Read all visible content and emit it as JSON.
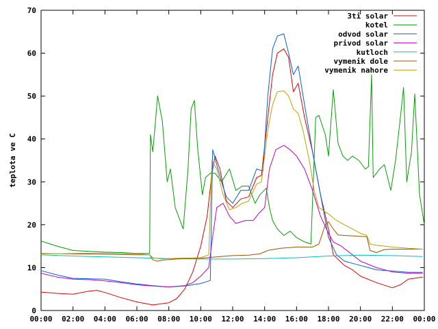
{
  "chart_data": {
    "type": "line",
    "title": "",
    "xlabel": "",
    "ylabel": "teplota ve C",
    "xlim": [
      0,
      24
    ],
    "ylim": [
      0,
      70
    ],
    "x_ticks": [
      0,
      2,
      4,
      6,
      8,
      10,
      12,
      14,
      16,
      18,
      20,
      22,
      24
    ],
    "x_tick_labels": [
      "00:00",
      "02:00",
      "04:00",
      "06:00",
      "08:00",
      "10:00",
      "12:00",
      "14:00",
      "16:00",
      "18:00",
      "20:00",
      "22:00",
      "00:00"
    ],
    "y_ticks": [
      0,
      10,
      20,
      30,
      40,
      50,
      60,
      70
    ],
    "y_tick_labels": [
      "0",
      "10",
      "20",
      "30",
      "40",
      "50",
      "60",
      "70"
    ],
    "grid": false,
    "legend_position": "top-right",
    "series": [
      {
        "name": "3ti solar",
        "color": "#e00000",
        "points": [
          [
            0,
            4.3
          ],
          [
            1,
            4
          ],
          [
            2,
            3.8
          ],
          [
            3,
            4.5
          ],
          [
            3.5,
            4.7
          ],
          [
            4,
            4.2
          ],
          [
            5,
            3
          ],
          [
            6,
            2
          ],
          [
            7,
            1.3
          ],
          [
            8,
            1.8
          ],
          [
            8.5,
            2.8
          ],
          [
            9,
            5
          ],
          [
            9.5,
            9
          ],
          [
            10,
            15
          ],
          [
            10.4,
            22
          ],
          [
            10.7,
            32
          ],
          [
            10.9,
            36
          ],
          [
            11.2,
            33
          ],
          [
            11.6,
            25.5
          ],
          [
            12,
            24
          ],
          [
            12.5,
            26
          ],
          [
            13,
            26.5
          ],
          [
            13.5,
            31
          ],
          [
            13.8,
            31.5
          ],
          [
            14.2,
            45
          ],
          [
            14.5,
            55
          ],
          [
            14.8,
            60
          ],
          [
            15.2,
            61
          ],
          [
            15.5,
            59
          ],
          [
            15.8,
            51
          ],
          [
            16.1,
            53
          ],
          [
            16.5,
            45
          ],
          [
            17,
            37
          ],
          [
            17.5,
            27
          ],
          [
            18,
            19
          ],
          [
            18.3,
            13
          ],
          [
            19,
            10.5
          ],
          [
            19.5,
            9.5
          ],
          [
            20,
            8
          ],
          [
            21,
            6.5
          ],
          [
            22,
            5.3
          ],
          [
            22.5,
            6
          ],
          [
            23,
            7.3
          ],
          [
            23.9,
            7.8
          ]
        ]
      },
      {
        "name": "kotel",
        "color": "#00a000",
        "points": [
          [
            0,
            16.2
          ],
          [
            1,
            15
          ],
          [
            2,
            14
          ],
          [
            3,
            13.8
          ],
          [
            4,
            13.6
          ],
          [
            5,
            13.5
          ],
          [
            6,
            13.3
          ],
          [
            6.8,
            13.3
          ],
          [
            6.85,
            41
          ],
          [
            7,
            37
          ],
          [
            7.3,
            50
          ],
          [
            7.6,
            44
          ],
          [
            7.9,
            30
          ],
          [
            8.1,
            33
          ],
          [
            8.4,
            24
          ],
          [
            8.9,
            19
          ],
          [
            9.2,
            33
          ],
          [
            9.4,
            47
          ],
          [
            9.6,
            49
          ],
          [
            9.8,
            38
          ],
          [
            10.1,
            27
          ],
          [
            10.3,
            31
          ],
          [
            10.6,
            32
          ],
          [
            10.9,
            32
          ],
          [
            11.3,
            30
          ],
          [
            11.8,
            33
          ],
          [
            12.2,
            28
          ],
          [
            12.6,
            29
          ],
          [
            13,
            29
          ],
          [
            13.4,
            25
          ],
          [
            13.7,
            27
          ],
          [
            14.1,
            28.5
          ],
          [
            14.3,
            24
          ],
          [
            14.5,
            21
          ],
          [
            14.8,
            19
          ],
          [
            15.2,
            17.5
          ],
          [
            15.6,
            18.5
          ],
          [
            16,
            17
          ],
          [
            16.5,
            16
          ],
          [
            16.9,
            15.5
          ],
          [
            17.2,
            45
          ],
          [
            17.4,
            45.5
          ],
          [
            17.8,
            41
          ],
          [
            18,
            36
          ],
          [
            18.3,
            51.5
          ],
          [
            18.6,
            39
          ],
          [
            18.9,
            36
          ],
          [
            19.2,
            35
          ],
          [
            19.5,
            36
          ],
          [
            19.9,
            35
          ],
          [
            20.3,
            33
          ],
          [
            20.5,
            33.5
          ],
          [
            20.7,
            55
          ],
          [
            20.8,
            31
          ],
          [
            21.2,
            33
          ],
          [
            21.5,
            34
          ],
          [
            21.9,
            28
          ],
          [
            22.2,
            35
          ],
          [
            22.5,
            45
          ],
          [
            22.7,
            52
          ],
          [
            22.9,
            30
          ],
          [
            23.2,
            37
          ],
          [
            23.4,
            50.5
          ],
          [
            23.7,
            27
          ],
          [
            24,
            20
          ]
        ]
      },
      {
        "name": "odvod solar",
        "color": "#0060e0",
        "points": [
          [
            0,
            9.3
          ],
          [
            1,
            8.3
          ],
          [
            2,
            7.5
          ],
          [
            3,
            7.4
          ],
          [
            4,
            7.3
          ],
          [
            5,
            6.7
          ],
          [
            6,
            6.2
          ],
          [
            7,
            5.8
          ],
          [
            8,
            5.5
          ],
          [
            9,
            5.7
          ],
          [
            10,
            6.3
          ],
          [
            10.6,
            7
          ],
          [
            10.75,
            37.5
          ],
          [
            11,
            34
          ],
          [
            11.3,
            30
          ],
          [
            11.6,
            26.5
          ],
          [
            12,
            25
          ],
          [
            12.5,
            28
          ],
          [
            13,
            28
          ],
          [
            13.5,
            33
          ],
          [
            13.9,
            32.5
          ],
          [
            14.2,
            50
          ],
          [
            14.5,
            61
          ],
          [
            14.8,
            64
          ],
          [
            15.2,
            64.5
          ],
          [
            15.5,
            60
          ],
          [
            15.8,
            55
          ],
          [
            16.1,
            57
          ],
          [
            16.5,
            48
          ],
          [
            17,
            37
          ],
          [
            17.5,
            27
          ],
          [
            18,
            17
          ],
          [
            18.5,
            13
          ],
          [
            19,
            11.5
          ],
          [
            19.5,
            11
          ],
          [
            20,
            10.5
          ],
          [
            20.5,
            10
          ],
          [
            21,
            9.5
          ],
          [
            22,
            9.2
          ],
          [
            23,
            8.9
          ],
          [
            23.9,
            8.9
          ]
        ]
      },
      {
        "name": "privod solar",
        "color": "#c000c0",
        "points": [
          [
            0,
            8.7
          ],
          [
            1,
            7.8
          ],
          [
            2,
            7.3
          ],
          [
            3,
            7.2
          ],
          [
            4,
            6.9
          ],
          [
            5,
            6.5
          ],
          [
            6,
            6.0
          ],
          [
            7,
            5.7
          ],
          [
            8,
            5.5
          ],
          [
            9,
            5.8
          ],
          [
            9.5,
            6.5
          ],
          [
            10,
            8
          ],
          [
            10.5,
            10
          ],
          [
            10.7,
            16
          ],
          [
            11,
            24
          ],
          [
            11.4,
            25
          ],
          [
            11.8,
            22
          ],
          [
            12.2,
            20.3
          ],
          [
            12.8,
            21
          ],
          [
            13.3,
            21
          ],
          [
            13.6,
            22.5
          ],
          [
            14,
            24
          ],
          [
            14.3,
            33
          ],
          [
            14.7,
            37.5
          ],
          [
            15.2,
            38.5
          ],
          [
            15.6,
            37.5
          ],
          [
            16,
            36
          ],
          [
            16.5,
            33
          ],
          [
            17,
            28
          ],
          [
            17.5,
            22
          ],
          [
            18,
            18
          ],
          [
            18.3,
            16
          ],
          [
            18.8,
            15
          ],
          [
            19.5,
            13
          ],
          [
            20,
            11.5
          ],
          [
            21,
            10
          ],
          [
            22,
            9
          ],
          [
            23,
            8.7
          ],
          [
            23.9,
            8.7
          ]
        ]
      },
      {
        "name": "kutloch",
        "color": "#00c0c0",
        "points": [
          [
            0,
            13
          ],
          [
            2,
            12.7
          ],
          [
            4,
            12.5
          ],
          [
            6,
            12.3
          ],
          [
            8,
            12.1
          ],
          [
            10,
            12
          ],
          [
            12,
            12
          ],
          [
            14,
            12.1
          ],
          [
            16,
            12.3
          ],
          [
            18,
            12.7
          ],
          [
            20,
            12.9
          ],
          [
            22,
            12.8
          ],
          [
            23.9,
            12.6
          ]
        ]
      },
      {
        "name": "vymenik dole",
        "color": "#a05000",
        "points": [
          [
            0,
            13.3
          ],
          [
            2,
            13.2
          ],
          [
            4,
            13.1
          ],
          [
            6,
            13
          ],
          [
            6.8,
            13
          ],
          [
            7,
            11.8
          ],
          [
            7.3,
            11.5
          ],
          [
            7.7,
            11.8
          ],
          [
            8.5,
            12
          ],
          [
            10,
            12.2
          ],
          [
            11,
            12.5
          ],
          [
            12,
            12.8
          ],
          [
            13,
            12.9
          ],
          [
            13.7,
            13.2
          ],
          [
            14.2,
            14
          ],
          [
            15,
            14.5
          ],
          [
            16,
            14.8
          ],
          [
            17,
            14.8
          ],
          [
            17.4,
            15.5
          ],
          [
            17.8,
            20
          ],
          [
            18,
            20.7
          ],
          [
            18.3,
            19
          ],
          [
            18.6,
            17.6
          ],
          [
            19,
            17.5
          ],
          [
            20.4,
            17.2
          ],
          [
            20.6,
            14
          ],
          [
            21,
            13.5
          ],
          [
            21.5,
            14.2
          ],
          [
            22,
            14.3
          ],
          [
            23,
            14.3
          ],
          [
            23.9,
            14.3
          ]
        ]
      },
      {
        "name": "vymenik nahore",
        "color": "#c0a000",
        "points": [
          [
            0,
            13.2
          ],
          [
            2,
            13.3
          ],
          [
            4,
            13.4
          ],
          [
            6,
            13.2
          ],
          [
            6.8,
            13
          ],
          [
            7,
            12.3
          ],
          [
            7.5,
            12
          ],
          [
            8.5,
            12.2
          ],
          [
            10,
            12.3
          ],
          [
            10.5,
            13
          ],
          [
            10.7,
            35
          ],
          [
            11,
            33
          ],
          [
            11.4,
            27
          ],
          [
            11.8,
            23.5
          ],
          [
            12.2,
            24
          ],
          [
            12.6,
            25
          ],
          [
            13,
            25.5
          ],
          [
            13.5,
            29.5
          ],
          [
            13.8,
            30
          ],
          [
            14.2,
            42
          ],
          [
            14.5,
            48
          ],
          [
            14.8,
            51
          ],
          [
            15.2,
            51.2
          ],
          [
            15.5,
            50
          ],
          [
            15.8,
            47
          ],
          [
            16.1,
            46
          ],
          [
            16.4,
            42
          ],
          [
            16.8,
            35
          ],
          [
            17.1,
            28
          ],
          [
            17.4,
            24
          ],
          [
            18,
            22.5
          ],
          [
            18.5,
            21
          ],
          [
            19,
            20
          ],
          [
            19.5,
            19
          ],
          [
            20,
            18
          ],
          [
            20.4,
            17.5
          ],
          [
            20.6,
            15.5
          ],
          [
            21,
            15.2
          ],
          [
            22,
            14.8
          ],
          [
            23,
            14.5
          ],
          [
            23.9,
            14.3
          ]
        ]
      }
    ]
  }
}
